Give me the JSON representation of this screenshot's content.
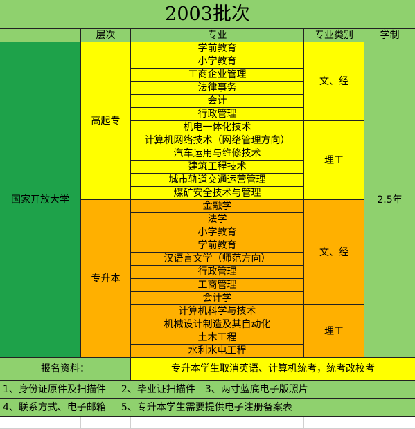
{
  "title": "2003批次",
  "headers": {
    "level": "层次",
    "major": "专业",
    "category": "专业类别",
    "duration": "学制"
  },
  "institution": "国家开放大学",
  "duration_value": "2.5年",
  "levels": {
    "gaoqizhuan": "高起专",
    "zhuanshengben": "专升本"
  },
  "majors_gaoqizhuan": [
    "学前教育",
    "小学教育",
    "工商企业管理",
    "法律事务",
    "会计",
    "行政管理",
    "机电一体化技术",
    "计算机网络技术（网络管理方向）",
    "汽车运用与维修技术",
    "建筑工程技术",
    "城市轨道交通运营管理",
    "煤矿安全技术与管理"
  ],
  "majors_zhuanshengben": [
    "金融学",
    "法学",
    "小学教育",
    "学前教育",
    "汉语言文学（师范方向）",
    "行政管理",
    "工商管理",
    "会计学",
    "计算机科学与技术",
    "机械设计制造及其自动化",
    "土木工程",
    "水利水电工程"
  ],
  "categories": {
    "arts": "文、经",
    "science": "理工"
  },
  "materials_label": "报名资料：",
  "materials_note": "专升本学生取消英语、计算机统考，统考改校考",
  "requirements": {
    "r1": "1、身份证原件及扫描件",
    "r2": "2、毕业证扫描件",
    "r3": "3、两寸蓝底电子版照片",
    "r4": "4、联系方式、电子邮箱",
    "r5": "5、专升本学生需要提供电子注册备案表"
  }
}
